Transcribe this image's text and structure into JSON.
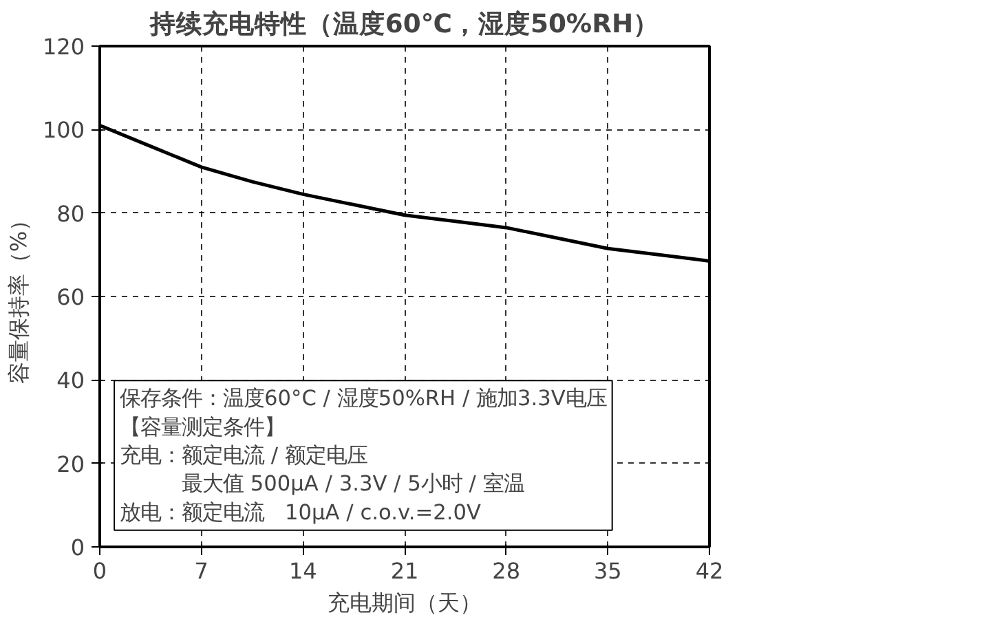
{
  "chart_data": {
    "type": "line",
    "title": "持续充电特性（温度60℃，湿度50%RH）",
    "xlabel": "充电期间（天）",
    "ylabel": "容量保持率（%）",
    "x": [
      0,
      3.5,
      7,
      10.5,
      14,
      17.5,
      21,
      24.5,
      28,
      31.5,
      35,
      38.5,
      42
    ],
    "series": [
      {
        "color": "#000000",
        "values": [
          101,
          96,
          91,
          87.5,
          84.5,
          82,
          79.5,
          78,
          76.5,
          74,
          71.5,
          70,
          68.5
        ]
      }
    ],
    "xlim": [
      0,
      42
    ],
    "xticks": [
      0,
      7,
      14,
      21,
      28,
      35,
      42
    ],
    "ylim": [
      0,
      120
    ],
    "yticks": [
      0,
      20,
      40,
      60,
      80,
      100,
      120
    ],
    "grid": true,
    "line_style": "solid",
    "annotations": [
      "保存条件：温度60°C / 湿度50%RH / 施加3.3V电压",
      "【容量测定条件】",
      "充电：额定电流 / 额定电压",
      "　　　最大值 500μA / 3.3V / 5小时 / 室温",
      "放电：额定电流　10μA / c.o.v.=2.0V"
    ]
  }
}
